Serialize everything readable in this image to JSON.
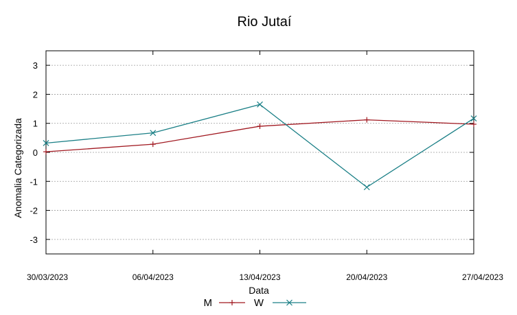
{
  "chart_data": {
    "type": "line",
    "title": "Rio Jutaí",
    "xlabel": "Data",
    "ylabel": "Anomalia Categorizada",
    "x": [
      "30/03/2023",
      "06/04/2023",
      "13/04/2023",
      "20/04/2023",
      "27/04/2023"
    ],
    "y_ticks": [
      "3",
      "2",
      "1",
      "0",
      "-1",
      "-2",
      "-3"
    ],
    "ylim": [
      -3.5,
      3.5
    ],
    "grid": true,
    "legend_position": "bottom",
    "series": [
      {
        "name": "M",
        "color": "#a0171f",
        "marker": "plus",
        "values": [
          0.02,
          0.28,
          0.9,
          1.12,
          0.97
        ]
      },
      {
        "name": "W",
        "color": "#1a7f86",
        "marker": "cross",
        "values": [
          0.32,
          0.67,
          1.65,
          -1.2,
          1.17
        ]
      }
    ]
  }
}
